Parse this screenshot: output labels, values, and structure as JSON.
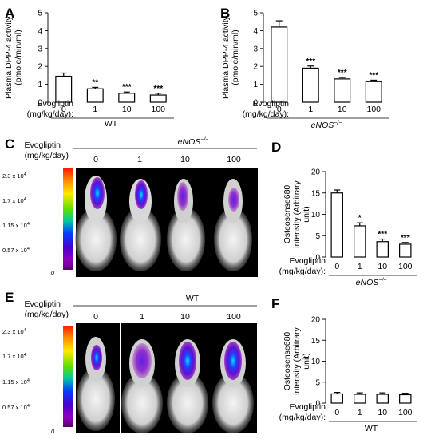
{
  "panels": {
    "A": {
      "label": "A",
      "group": "WT",
      "group_italic": false
    },
    "B": {
      "label": "B",
      "group": "eNOS",
      "group_sup": "−/−",
      "group_italic": true
    },
    "C": {
      "label": "C",
      "group": "eNOS",
      "group_sup": "−/−",
      "doses": [
        "0",
        "1",
        "10",
        "100"
      ]
    },
    "D": {
      "label": "D",
      "group": "eNOS",
      "group_sup": "−/−"
    },
    "E": {
      "label": "E",
      "group": "WT",
      "doses": [
        "0",
        "1",
        "10",
        "100"
      ]
    },
    "F": {
      "label": "F",
      "group": "WT"
    }
  },
  "dose_header_line1": "Evogliptin",
  "dose_header_line2": "(mg/kg/day):",
  "dose_header_line2_alt": "(mg/kg/day)",
  "scalebar": {
    "ticks_C": [
      "2.3 x 10",
      "1.7 x 10",
      "1.15 x 10",
      "0.57 x 10",
      "0"
    ],
    "ticks_E": [
      "2.3 x 10",
      "1.7 x 10",
      "1.15 x 10",
      "0.57 x 10",
      "0"
    ],
    "exponent": "4",
    "colors": [
      "#ff1a00",
      "#ff8c00",
      "#ffe800",
      "#5fe000",
      "#00c8a0",
      "#0040ff",
      "#4a00d0",
      "#9000c0",
      "#5a0070"
    ]
  },
  "chart_data": [
    {
      "id": "A",
      "type": "bar",
      "ylabel": "Plasma DPP-4 activity\n(pmole/min/ml)",
      "ylim": [
        0,
        5
      ],
      "yticks": [
        0,
        1,
        2,
        3,
        4,
        5
      ],
      "categories": [
        "0",
        "1",
        "10",
        "100"
      ],
      "values": [
        1.45,
        0.75,
        0.5,
        0.4
      ],
      "errors": [
        0.18,
        0.08,
        0.07,
        0.1
      ],
      "significance": [
        "",
        "**",
        "***",
        "***"
      ],
      "xlabel": "WT"
    },
    {
      "id": "B",
      "type": "bar",
      "ylabel": "Plasma DPP-4 activity\n(pmole/min/ml)",
      "ylim": [
        0,
        5
      ],
      "yticks": [
        0,
        1,
        2,
        3,
        4,
        5
      ],
      "categories": [
        "0",
        "1",
        "10",
        "100"
      ],
      "values": [
        4.2,
        1.9,
        1.3,
        1.15
      ],
      "errors": [
        0.35,
        0.12,
        0.08,
        0.08
      ],
      "significance": [
        "",
        "***",
        "***",
        "***"
      ],
      "xlabel": "eNOS−/−"
    },
    {
      "id": "D",
      "type": "bar",
      "ylabel": "Osteosense680\nintensity (Arbitrary\nunit)",
      "ylim": [
        0,
        20
      ],
      "yticks": [
        0,
        5,
        10,
        15,
        20
      ],
      "categories": [
        "0",
        "1",
        "10",
        "100"
      ],
      "values": [
        15,
        7.3,
        3.6,
        3
      ],
      "errors": [
        0.7,
        0.7,
        0.6,
        0.4
      ],
      "significance": [
        "",
        "*",
        "***",
        "***"
      ],
      "xlabel": "eNOS−/−"
    },
    {
      "id": "F",
      "type": "bar",
      "ylabel": "Osteosense680\nintensity (Arbitrary\nunit)",
      "ylim": [
        0,
        20
      ],
      "yticks": [
        0,
        5,
        10,
        15,
        20
      ],
      "categories": [
        "0",
        "1",
        "10",
        "100"
      ],
      "values": [
        2.2,
        2.1,
        2.1,
        2.0
      ],
      "errors": [
        0.35,
        0.35,
        0.35,
        0.35
      ],
      "significance": [
        "",
        "",
        "",
        ""
      ],
      "xlabel": "WT"
    }
  ]
}
